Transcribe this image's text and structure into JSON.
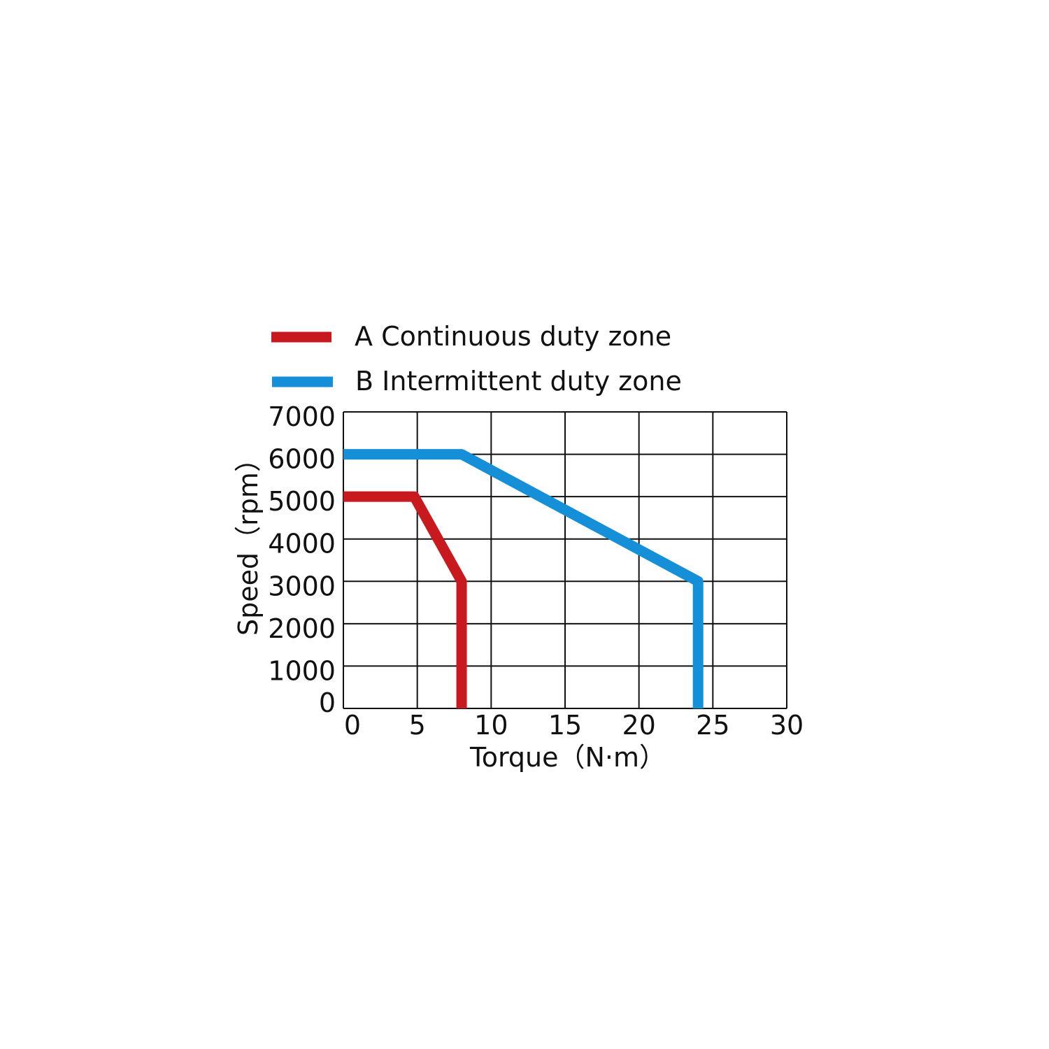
{
  "chart_data": {
    "type": "line",
    "title": "",
    "xlabel": "Torque（N·m）",
    "ylabel": "Speed（rpm）",
    "xlim": [
      0,
      30
    ],
    "ylim": [
      0,
      7000
    ],
    "xticks": [
      "0",
      "5",
      "10",
      "15",
      "20",
      "25",
      "30"
    ],
    "yticks": [
      "0",
      "1000",
      "2000",
      "3000",
      "4000",
      "5000",
      "6000",
      "7000"
    ],
    "grid": true,
    "legend_placement": "top",
    "series": [
      {
        "name": "A Continuous duty zone",
        "color": "#c8191f",
        "points": [
          [
            0,
            5000
          ],
          [
            4.8,
            5000
          ],
          [
            8,
            3000
          ],
          [
            8,
            0
          ]
        ]
      },
      {
        "name": "B Intermittent duty zone",
        "color": "#1590d8",
        "points": [
          [
            0,
            6000
          ],
          [
            8,
            6000
          ],
          [
            24,
            3000
          ],
          [
            24,
            0
          ]
        ]
      }
    ]
  }
}
